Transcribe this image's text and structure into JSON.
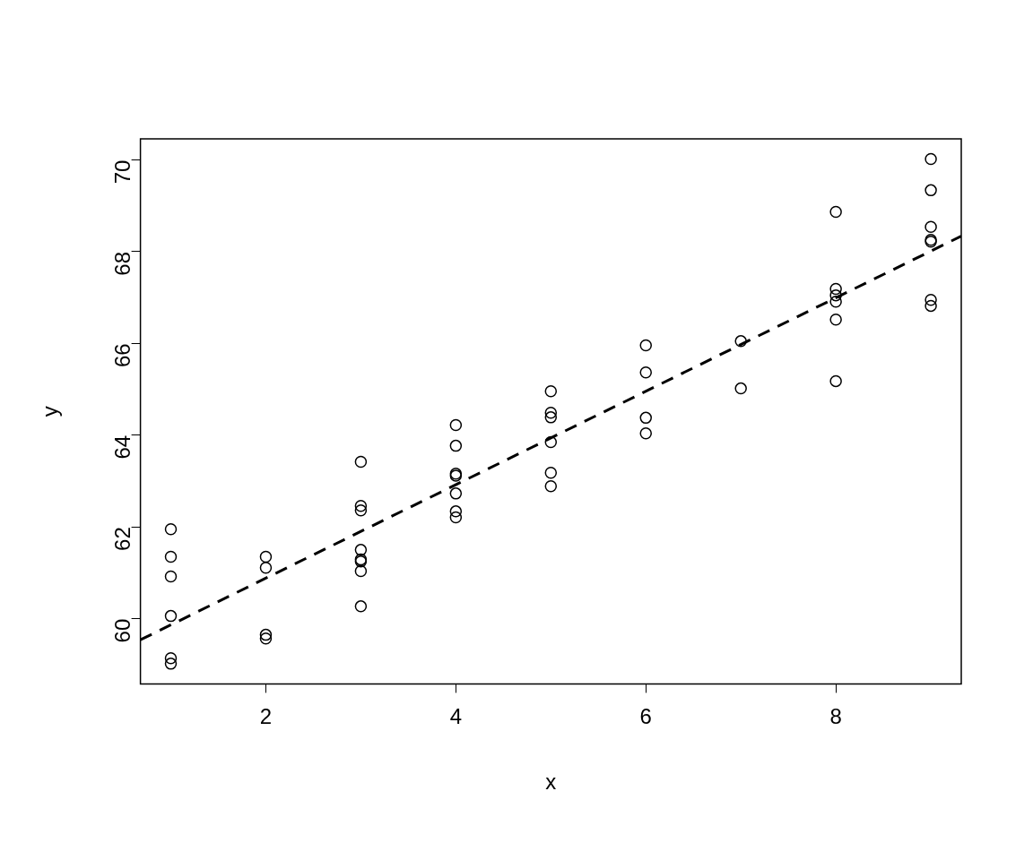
{
  "chart_data": {
    "type": "scatter",
    "xlabel": "x",
    "ylabel": "y",
    "xlim": [
      0.68,
      9.32
    ],
    "ylim": [
      58.58,
      70.46
    ],
    "xticks": [
      2,
      4,
      6,
      8
    ],
    "yticks": [
      60,
      62,
      64,
      66,
      68,
      70
    ],
    "grid": false,
    "legend": false,
    "marker": "circle",
    "series": [
      {
        "color": "#000000",
        "x": [
          1,
          1,
          1,
          1,
          1,
          1,
          2,
          2,
          2,
          2,
          3,
          3,
          3,
          3,
          3,
          3,
          3,
          3,
          4,
          4,
          4,
          4,
          4,
          4,
          4,
          5,
          5,
          5,
          5,
          5,
          5,
          6,
          6,
          6,
          6,
          7,
          7,
          8,
          8,
          8,
          8,
          8,
          8,
          9,
          9,
          9,
          9,
          9,
          9,
          9
        ],
        "values": [
          61.95,
          61.35,
          60.92,
          60.06,
          59.14,
          59.02,
          61.35,
          61.11,
          59.65,
          59.57,
          63.42,
          62.46,
          62.36,
          61.5,
          61.29,
          61.25,
          61.04,
          60.27,
          64.22,
          63.77,
          63.16,
          63.12,
          62.73,
          62.34,
          62.21,
          64.96,
          64.49,
          64.39,
          63.85,
          63.18,
          62.89,
          65.96,
          65.37,
          64.38,
          64.04,
          66.05,
          65.02,
          68.87,
          67.19,
          67.05,
          66.91,
          66.52,
          65.18,
          70.02,
          69.34,
          68.54,
          68.26,
          68.22,
          66.95,
          66.82
        ]
      },
      {
        "type": "line",
        "color": "#000000",
        "line_style": "dashed",
        "marker": "none",
        "x": [
          0.68,
          9.32
        ],
        "values": [
          59.54,
          68.34
        ]
      }
    ]
  }
}
